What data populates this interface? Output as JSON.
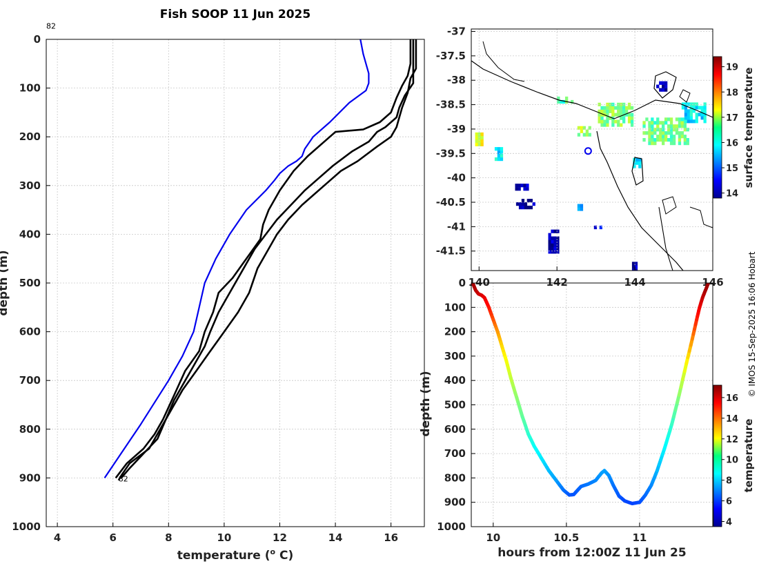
{
  "credit": "© IMOS 15-Sep-2025 16:06 Hobart",
  "colors": {
    "warm_profile": "#0000ee",
    "cast_profiles": "#000000",
    "coast": "#000000",
    "marker": "#0000ee"
  },
  "chart_data": [
    {
      "id": "profile",
      "type": "line",
      "title": "Fish SOOP 11 Jun 2025",
      "xlabel": "temperature (o C)",
      "xlabel_base": "temperature (",
      "xlabel_sup": "o",
      "xlabel_tail": " C)",
      "ylabel": "depth (m)",
      "xlim": [
        3.6,
        17.2
      ],
      "ylim": [
        1000,
        0
      ],
      "xticks": [
        4,
        6,
        8,
        10,
        12,
        14,
        16
      ],
      "yticks": [
        0,
        100,
        200,
        300,
        400,
        500,
        600,
        700,
        800,
        900,
        1000
      ],
      "grid": true,
      "annotations": [
        {
          "text": "82",
          "x": 3.6,
          "y": -22
        },
        {
          "text": "82",
          "x": 6.2,
          "y": 907
        }
      ],
      "series": [
        {
          "name": "blue profile",
          "color": "#0000ee",
          "points": [
            [
              14.9,
              0
            ],
            [
              15.0,
              30
            ],
            [
              15.1,
              50
            ],
            [
              15.2,
              70
            ],
            [
              15.2,
              90
            ],
            [
              15.1,
              105
            ],
            [
              14.5,
              130
            ],
            [
              13.8,
              170
            ],
            [
              13.2,
              200
            ],
            [
              12.9,
              225
            ],
            [
              12.8,
              240
            ],
            [
              12.6,
              250
            ],
            [
              12.3,
              260
            ],
            [
              12.0,
              275
            ],
            [
              11.8,
              290
            ],
            [
              11.5,
              310
            ],
            [
              10.8,
              350
            ],
            [
              10.2,
              400
            ],
            [
              9.7,
              450
            ],
            [
              9.3,
              500
            ],
            [
              8.9,
              600
            ],
            [
              8.5,
              650
            ],
            [
              8.0,
              700
            ],
            [
              7.0,
              790
            ],
            [
              5.7,
              900
            ]
          ]
        },
        {
          "name": "black profile 1",
          "color": "#000000",
          "points": [
            [
              16.9,
              0
            ],
            [
              16.9,
              60
            ],
            [
              16.7,
              80
            ],
            [
              16.6,
              110
            ],
            [
              16.4,
              140
            ],
            [
              16.3,
              160
            ],
            [
              16.2,
              180
            ],
            [
              16.0,
              200
            ],
            [
              15.5,
              220
            ],
            [
              14.8,
              250
            ],
            [
              14.2,
              270
            ],
            [
              13.8,
              290
            ],
            [
              13.2,
              320
            ],
            [
              12.8,
              340
            ],
            [
              12.3,
              370
            ],
            [
              11.9,
              400
            ],
            [
              11.5,
              440
            ],
            [
              11.2,
              470
            ],
            [
              10.9,
              520
            ],
            [
              10.5,
              560
            ],
            [
              10.0,
              600
            ],
            [
              9.5,
              640
            ],
            [
              9.0,
              680
            ],
            [
              8.5,
              720
            ],
            [
              8.0,
              770
            ],
            [
              7.7,
              800
            ],
            [
              7.3,
              840
            ],
            [
              6.6,
              870
            ],
            [
              6.3,
              895
            ],
            [
              6.2,
              905
            ]
          ]
        },
        {
          "name": "black profile 2",
          "color": "#000000",
          "points": [
            [
              16.7,
              0
            ],
            [
              16.7,
              50
            ],
            [
              16.6,
              75
            ],
            [
              16.4,
              95
            ],
            [
              16.2,
              120
            ],
            [
              16.0,
              150
            ],
            [
              15.6,
              170
            ],
            [
              15.0,
              185
            ],
            [
              14.0,
              190
            ],
            [
              13.8,
              200
            ],
            [
              13.0,
              240
            ],
            [
              12.5,
              270
            ],
            [
              12.0,
              310
            ],
            [
              11.6,
              350
            ],
            [
              11.4,
              380
            ],
            [
              11.3,
              410
            ],
            [
              10.8,
              450
            ],
            [
              10.3,
              490
            ],
            [
              9.8,
              520
            ],
            [
              9.6,
              560
            ],
            [
              9.3,
              600
            ],
            [
              9.1,
              640
            ],
            [
              8.6,
              680
            ],
            [
              8.2,
              730
            ],
            [
              7.8,
              780
            ],
            [
              7.5,
              810
            ],
            [
              7.1,
              840
            ],
            [
              6.5,
              870
            ],
            [
              6.1,
              900
            ]
          ]
        },
        {
          "name": "black profile 3",
          "color": "#000000",
          "points": [
            [
              16.8,
              0
            ],
            [
              16.8,
              55
            ],
            [
              16.8,
              90
            ],
            [
              16.5,
              115
            ],
            [
              16.3,
              140
            ],
            [
              16.2,
              160
            ],
            [
              15.8,
              180
            ],
            [
              15.5,
              190
            ],
            [
              15.2,
              210
            ],
            [
              14.6,
              230
            ],
            [
              13.9,
              260
            ],
            [
              13.3,
              290
            ],
            [
              12.9,
              310
            ],
            [
              12.4,
              340
            ],
            [
              11.9,
              370
            ],
            [
              11.5,
              400
            ],
            [
              11.1,
              430
            ],
            [
              10.7,
              470
            ],
            [
              10.2,
              520
            ],
            [
              9.8,
              560
            ],
            [
              9.5,
              600
            ],
            [
              9.3,
              630
            ],
            [
              8.9,
              670
            ],
            [
              8.6,
              700
            ],
            [
              8.2,
              740
            ],
            [
              7.9,
              780
            ],
            [
              7.6,
              820
            ],
            [
              7.1,
              850
            ],
            [
              6.6,
              880
            ],
            [
              6.3,
              900
            ]
          ]
        }
      ]
    },
    {
      "id": "map",
      "type": "heatmap",
      "xlim": [
        139.8,
        146
      ],
      "ylim": [
        -41.9,
        -36.95
      ],
      "xticks": [
        140,
        142,
        144,
        146
      ],
      "yticks": [
        -37,
        -37.5,
        -38,
        -38.5,
        -39,
        -39.5,
        -40,
        -40.5,
        -41,
        -41.5
      ],
      "grid": true,
      "colorbar": {
        "label": "surface temperature",
        "min": 13.8,
        "max": 19.4,
        "ticks": [
          14,
          15,
          16,
          17,
          18,
          19
        ]
      },
      "marker": {
        "lon": 142.8,
        "lat": -39.45
      },
      "sst_patches": [
        {
          "lon": 143.5,
          "lat": -38.7,
          "dlon": 0.9,
          "dlat": 0.5,
          "value": 16.6
        },
        {
          "lon": 144.8,
          "lat": -39.05,
          "dlon": 1.2,
          "dlat": 0.55,
          "value": 16.5
        },
        {
          "lon": 145.5,
          "lat": -38.65,
          "dlon": 0.6,
          "dlat": 0.45,
          "value": 15.8
        },
        {
          "lon": 144.7,
          "lat": -38.12,
          "dlon": 0.3,
          "dlat": 0.22,
          "value": 14.0
        },
        {
          "lon": 141.2,
          "lat": -40.55,
          "dlon": 0.5,
          "dlat": 0.18,
          "value": 14.0
        },
        {
          "lon": 140.5,
          "lat": -39.5,
          "dlon": 0.2,
          "dlat": 0.3,
          "value": 15.8
        },
        {
          "lon": 140.0,
          "lat": -39.2,
          "dlon": 0.2,
          "dlat": 0.3,
          "value": 17.2
        },
        {
          "lon": 141.1,
          "lat": -40.2,
          "dlon": 0.35,
          "dlat": 0.12,
          "value": 14.1
        },
        {
          "lon": 141.9,
          "lat": -41.3,
          "dlon": 0.25,
          "dlat": 0.5,
          "value": 14.0
        },
        {
          "lon": 142.6,
          "lat": -40.6,
          "dlon": 0.15,
          "dlat": 0.15,
          "value": 15.5
        },
        {
          "lon": 143.1,
          "lat": -41.0,
          "dlon": 0.3,
          "dlat": 0.1,
          "value": 14.5
        },
        {
          "lon": 144.0,
          "lat": -41.85,
          "dlon": 0.15,
          "dlat": 0.3,
          "value": 14.0
        },
        {
          "lon": 142.2,
          "lat": -38.4,
          "dlon": 0.4,
          "dlat": 0.15,
          "value": 16.4
        },
        {
          "lon": 142.7,
          "lat": -39.05,
          "dlon": 0.35,
          "dlat": 0.2,
          "value": 16.8
        },
        {
          "lon": 144.05,
          "lat": -39.7,
          "dlon": 0.2,
          "dlat": 0.2,
          "value": 15.6
        }
      ]
    },
    {
      "id": "transect",
      "type": "scatter",
      "xlabel": "hours from 12:00Z 11 Jun 25",
      "ylabel": "depth (m)",
      "xlim": [
        9.85,
        11.5
      ],
      "ylim": [
        1000,
        0
      ],
      "xticks": [
        10,
        10.5,
        11
      ],
      "xtick_labels": [
        "10",
        "10.5",
        "11"
      ],
      "yticks": [
        0,
        100,
        200,
        300,
        400,
        500,
        600,
        700,
        800,
        900,
        1000
      ],
      "grid": true,
      "colorbar": {
        "label": "temperature",
        "min": 3.5,
        "max": 17.2,
        "ticks": [
          4,
          6,
          8,
          10,
          12,
          14,
          16
        ]
      },
      "track": [
        [
          9.86,
          0,
          16.8
        ],
        [
          9.88,
          30,
          16.5
        ],
        [
          9.9,
          45,
          16.2
        ],
        [
          9.92,
          50,
          16.0
        ],
        [
          9.94,
          60,
          15.8
        ],
        [
          9.97,
          100,
          15.3
        ],
        [
          10.0,
          150,
          14.5
        ],
        [
          10.03,
          200,
          13.5
        ],
        [
          10.06,
          260,
          12.6
        ],
        [
          10.09,
          320,
          12.0
        ],
        [
          10.12,
          390,
          11.3
        ],
        [
          10.16,
          470,
          10.6
        ],
        [
          10.2,
          550,
          10.0
        ],
        [
          10.24,
          620,
          9.3
        ],
        [
          10.28,
          670,
          8.8
        ],
        [
          10.33,
          720,
          8.4
        ],
        [
          10.38,
          770,
          7.8
        ],
        [
          10.43,
          810,
          7.4
        ],
        [
          10.48,
          850,
          6.8
        ],
        [
          10.52,
          870,
          6.4
        ],
        [
          10.55,
          868,
          6.3
        ],
        [
          10.6,
          835,
          6.6
        ],
        [
          10.65,
          825,
          6.8
        ],
        [
          10.7,
          810,
          7.0
        ],
        [
          10.74,
          780,
          7.3
        ],
        [
          10.76,
          770,
          7.4
        ],
        [
          10.79,
          790,
          7.2
        ],
        [
          10.82,
          830,
          6.8
        ],
        [
          10.86,
          875,
          6.4
        ],
        [
          10.9,
          895,
          6.2
        ],
        [
          10.95,
          905,
          6.1
        ],
        [
          11.0,
          900,
          6.2
        ],
        [
          11.04,
          870,
          6.6
        ],
        [
          11.08,
          830,
          7.0
        ],
        [
          11.12,
          770,
          7.6
        ],
        [
          11.17,
          680,
          8.5
        ],
        [
          11.22,
          580,
          9.3
        ],
        [
          11.27,
          460,
          10.5
        ],
        [
          11.32,
          330,
          12.0
        ],
        [
          11.36,
          230,
          13.5
        ],
        [
          11.39,
          150,
          15.0
        ],
        [
          11.41,
          100,
          15.6
        ],
        [
          11.43,
          60,
          16.2
        ],
        [
          11.45,
          30,
          16.6
        ],
        [
          11.47,
          0,
          16.8
        ]
      ]
    }
  ]
}
